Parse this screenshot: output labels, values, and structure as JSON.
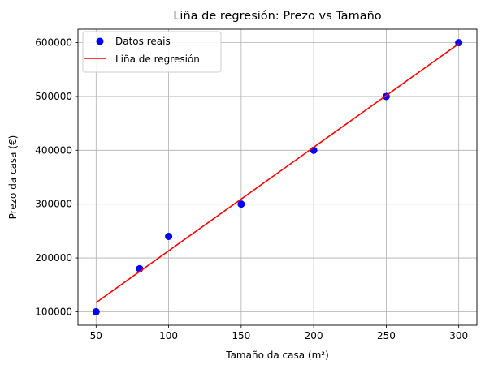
{
  "chart_data": {
    "type": "scatter",
    "title": "Liña de regresión: Prezo vs Tamaño",
    "xlabel": "Tamaño da casa (m²)",
    "ylabel": "Prezo da casa (€)",
    "xlim": [
      37.5,
      312.5
    ],
    "ylim": [
      75000,
      625000
    ],
    "xticks": [
      50,
      100,
      150,
      200,
      250,
      300
    ],
    "yticks": [
      100000,
      200000,
      300000,
      400000,
      500000,
      600000
    ],
    "grid": true,
    "legend_position": "top-left",
    "series": [
      {
        "name": "Datos reais",
        "kind": "scatter",
        "color": "#0000ff",
        "x": [
          50,
          80,
          100,
          150,
          200,
          250,
          300
        ],
        "y": [
          100000,
          180000,
          240000,
          300000,
          400000,
          500000,
          600000
        ]
      },
      {
        "name": "Liña de regresión",
        "kind": "line",
        "color": "#ff0000",
        "x": [
          50,
          300
        ],
        "y": [
          117000,
          598000
        ]
      }
    ]
  }
}
